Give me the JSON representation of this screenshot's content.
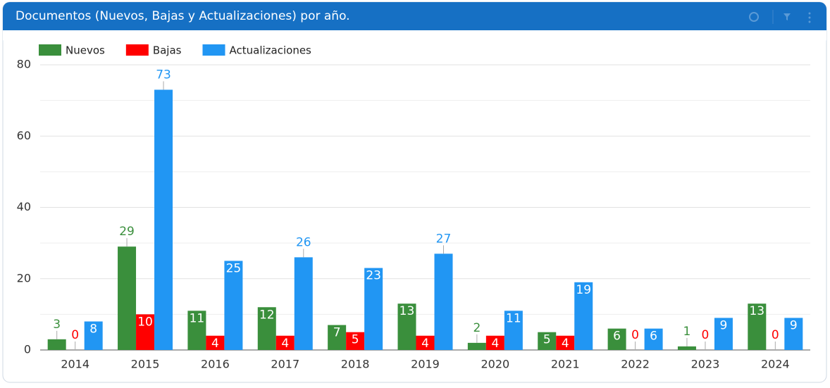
{
  "chart_data": {
    "type": "bar",
    "title": "Documentos (Nuevos, Bajas y Actualizaciones) por año.",
    "categories": [
      "2014",
      "2015",
      "2016",
      "2017",
      "2018",
      "2019",
      "2020",
      "2021",
      "2022",
      "2023",
      "2024"
    ],
    "series": [
      {
        "name": "Nuevos",
        "color": "#3a8f3c",
        "values": [
          3,
          29,
          11,
          12,
          7,
          13,
          2,
          5,
          6,
          1,
          13
        ]
      },
      {
        "name": "Bajas",
        "color": "#ff0000",
        "values": [
          0,
          10,
          4,
          4,
          5,
          4,
          4,
          4,
          0,
          0,
          0
        ]
      },
      {
        "name": "Actualizaciones",
        "color": "#2196f3",
        "values": [
          8,
          73,
          25,
          26,
          23,
          27,
          11,
          19,
          6,
          9,
          9
        ]
      }
    ],
    "ylim": [
      0,
      80
    ],
    "yticks": [
      0,
      20,
      40,
      60,
      80
    ],
    "minor_yticks": [
      10,
      30,
      50,
      70
    ],
    "grid": true,
    "legend": "top-left"
  }
}
